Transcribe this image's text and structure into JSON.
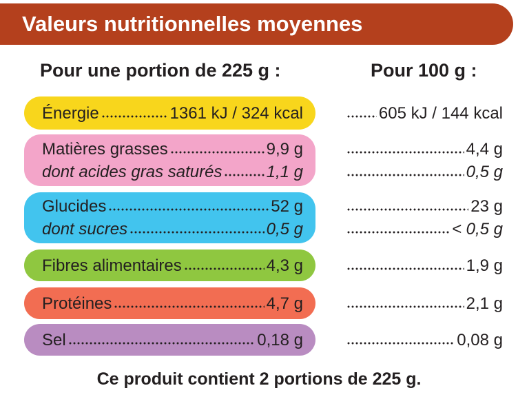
{
  "header": {
    "title": "Valeurs nutritionnelles moyennes"
  },
  "columns": [
    "Pour une portion de 225 g :",
    "Pour 100 g :"
  ],
  "rows": [
    {
      "color": "#f8d61c",
      "lines": [
        {
          "label": "Énergie",
          "portion": "1361 kJ / 324 kcal",
          "per_100g": "605 kJ / 144 kcal"
        }
      ]
    },
    {
      "color": "#f3a5c9",
      "lines": [
        {
          "label": "Matières grasses",
          "portion": "9,9 g",
          "per_100g": "4,4 g"
        },
        {
          "label": "dont acides gras saturés",
          "portion": "1,1 g",
          "per_100g": "0,5 g"
        }
      ]
    },
    {
      "color": "#42c4ee",
      "lines": [
        {
          "label": "Glucides",
          "portion": "52 g",
          "per_100g": "23 g"
        },
        {
          "label": "dont sucres",
          "portion": "0,5 g",
          "per_100g": "< 0,5 g"
        }
      ]
    },
    {
      "color": "#8fc740",
      "lines": [
        {
          "label": "Fibres alimentaires",
          "portion": "4,3 g",
          "per_100g": "1,9 g"
        }
      ]
    },
    {
      "color": "#f26d52",
      "lines": [
        {
          "label": "Protéines",
          "portion": "4,7 g",
          "per_100g": "2,1 g"
        }
      ]
    },
    {
      "color": "#b98cc1",
      "lines": [
        {
          "label": "Sel",
          "portion": "0,18 g",
          "per_100g": "0,08 g"
        }
      ]
    }
  ],
  "footer": "Ce produit contient 2 portions de 225 g."
}
